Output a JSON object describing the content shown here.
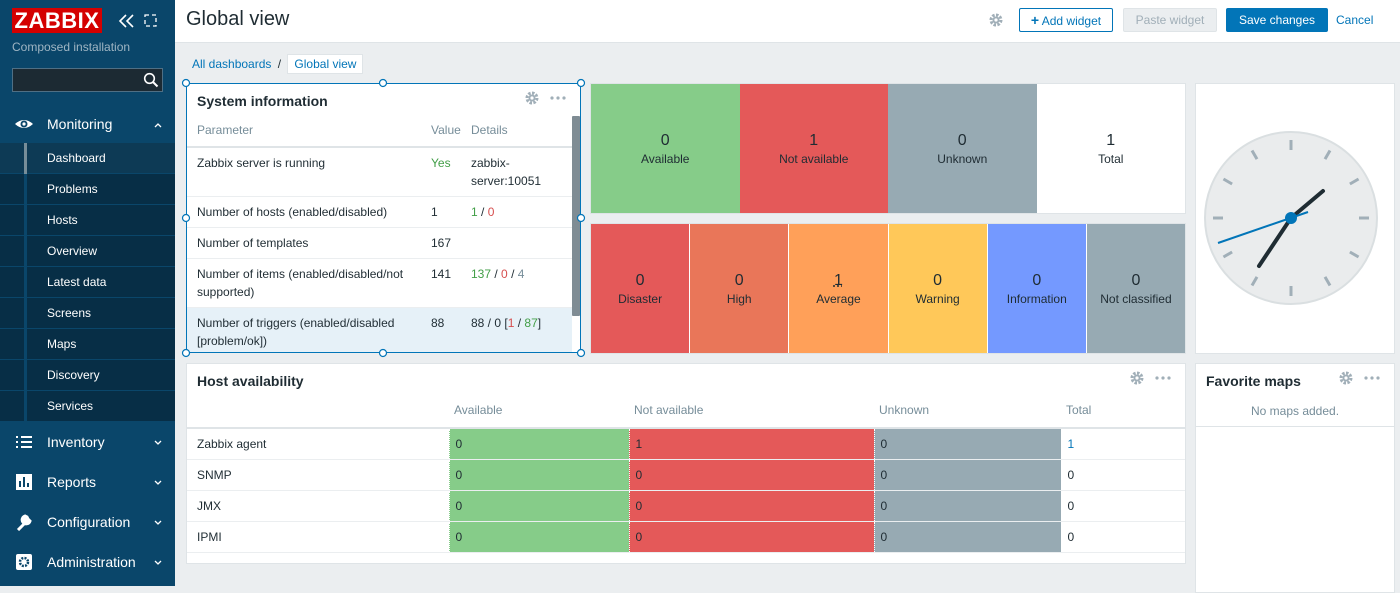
{
  "sidebar": {
    "logo": "ZABBIX",
    "subtitle": "Composed installation",
    "menu": [
      {
        "label": "Monitoring",
        "items": [
          "Dashboard",
          "Problems",
          "Hosts",
          "Overview",
          "Latest data",
          "Screens",
          "Maps",
          "Discovery",
          "Services"
        ]
      },
      {
        "label": "Inventory"
      },
      {
        "label": "Reports"
      },
      {
        "label": "Configuration"
      },
      {
        "label": "Administration"
      }
    ]
  },
  "header": {
    "title": "Global view",
    "add_widget": "Add widget",
    "paste_widget": "Paste widget",
    "save": "Save changes",
    "cancel": "Cancel"
  },
  "breadcrumbs": {
    "items": [
      "All dashboards",
      "Global view"
    ],
    "separator": "/"
  },
  "system_information": {
    "title": "System information",
    "columns": [
      "Parameter",
      "Value",
      "Details"
    ],
    "rows": [
      {
        "parameter": "Zabbix server is running",
        "value": "Yes",
        "value_color": "#429e47",
        "details": [
          {
            "text": "zabbix-server:10051"
          }
        ]
      },
      {
        "parameter": "Number of hosts (enabled/disabled)",
        "value": 1,
        "details": [
          {
            "text": "1",
            "color": "#429e47"
          },
          {
            "text": " / "
          },
          {
            "text": "0",
            "color": "#d64e4e"
          }
        ]
      },
      {
        "parameter": "Number of templates",
        "value": 167,
        "details": []
      },
      {
        "parameter": "Number of items (enabled/disabled/not supported)",
        "value": 141,
        "details": [
          {
            "text": "137",
            "color": "#429e47"
          },
          {
            "text": " / "
          },
          {
            "text": "0",
            "color": "#d64e4e"
          },
          {
            "text": " / "
          },
          {
            "text": "4",
            "color": "#768d99"
          }
        ]
      },
      {
        "parameter": "Number of triggers (enabled/disabled [problem/ok])",
        "value": 88,
        "details": [
          {
            "text": "88 / 0 ["
          },
          {
            "text": "1",
            "color": "#d64e4e"
          },
          {
            "text": " / "
          },
          {
            "text": "87",
            "color": "#429e47"
          },
          {
            "text": "]"
          }
        ]
      }
    ]
  },
  "host_status": [
    {
      "label": "Available",
      "value": 0,
      "color": "#86cc89"
    },
    {
      "label": "Not available",
      "value": 1,
      "color": "#e45959"
    },
    {
      "label": "Unknown",
      "value": 0,
      "color": "#97aab3"
    },
    {
      "label": "Total",
      "value": 1,
      "color": "#ffffff"
    }
  ],
  "problems_by_severity": [
    {
      "label": "Disaster",
      "value": 0,
      "color": "#e45959"
    },
    {
      "label": "High",
      "value": 0,
      "color": "#e97659"
    },
    {
      "label": "Average",
      "value": 1,
      "color": "#ffa059"
    },
    {
      "label": "Warning",
      "value": 0,
      "color": "#ffc859"
    },
    {
      "label": "Information",
      "value": 0,
      "color": "#7499ff"
    },
    {
      "label": "Not classified",
      "value": 0,
      "color": "#97aab3"
    }
  ],
  "host_availability": {
    "title": "Host availability",
    "columns": [
      {
        "label": "Available",
        "color": "#86cc89"
      },
      {
        "label": "Not available",
        "color": "#e45959"
      },
      {
        "label": "Unknown",
        "color": "#97aab3"
      },
      {
        "label": "Total"
      }
    ],
    "rows": [
      {
        "name": "Zabbix agent",
        "values": [
          0,
          1,
          0,
          1
        ]
      },
      {
        "name": "SNMP",
        "values": [
          0,
          0,
          0,
          0
        ]
      },
      {
        "name": "JMX",
        "values": [
          0,
          0,
          0,
          0
        ]
      },
      {
        "name": "IPMI",
        "values": [
          0,
          0,
          0,
          0
        ]
      }
    ]
  },
  "favorite_maps": {
    "title": "Favorite maps",
    "empty": "No maps added."
  }
}
